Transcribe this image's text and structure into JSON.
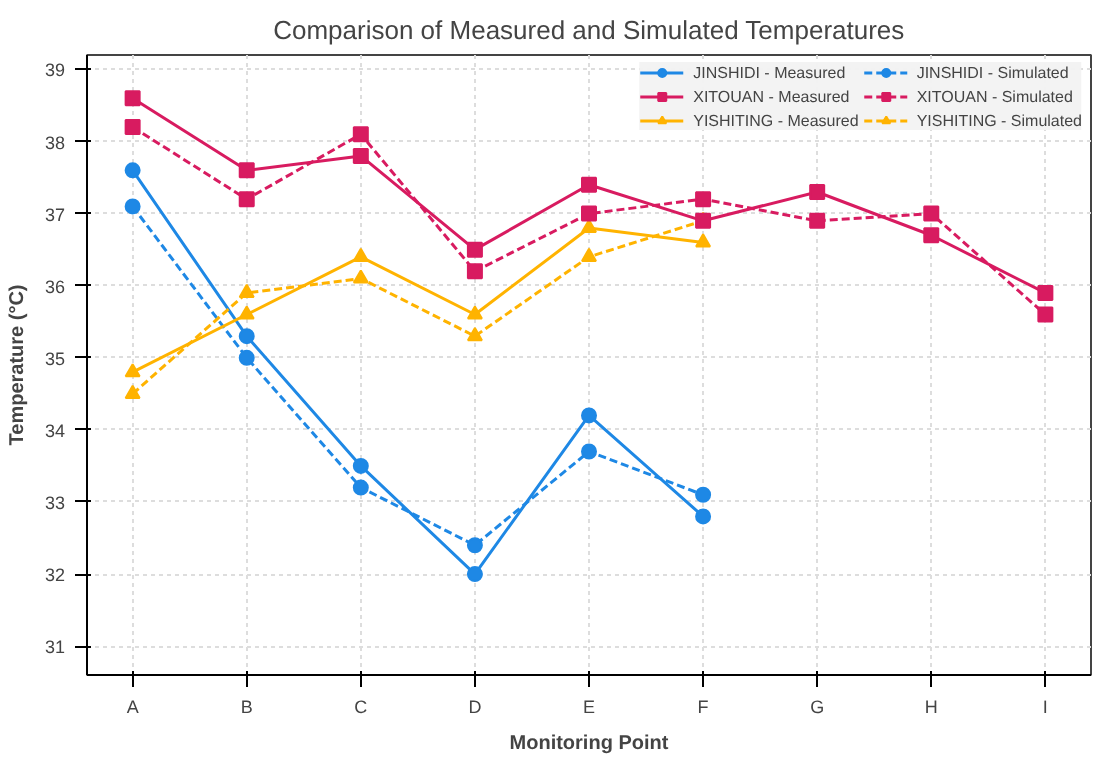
{
  "chart_data": {
    "type": "line",
    "title": "Comparison of Measured and Simulated Temperatures",
    "xlabel": "Monitoring Point",
    "ylabel": "Temperature (°C)",
    "categories": [
      "A",
      "B",
      "C",
      "D",
      "E",
      "F",
      "G",
      "H",
      "I"
    ],
    "ylim": [
      30.6,
      39.2
    ],
    "yticks": [
      31,
      32,
      33,
      34,
      35,
      36,
      37,
      38,
      39
    ],
    "grid": true,
    "legend": "top right",
    "series": [
      {
        "name": "JINSHIDI - Measured",
        "color": "#1e88e5",
        "marker": "circle",
        "line_style": "solid",
        "values": [
          37.6,
          35.3,
          33.5,
          32.0,
          34.2,
          32.8,
          null,
          null,
          null
        ]
      },
      {
        "name": "JINSHIDI - Simulated",
        "color": "#1e88e5",
        "marker": "circle",
        "line_style": "dashed",
        "values": [
          37.1,
          35.0,
          33.2,
          32.4,
          33.7,
          33.1,
          null,
          null,
          null
        ]
      },
      {
        "name": "XITOUAN - Measured",
        "color": "#d81b60",
        "marker": "square",
        "line_style": "solid",
        "values": [
          38.6,
          37.6,
          37.8,
          36.5,
          37.4,
          36.9,
          37.3,
          36.7,
          35.9
        ]
      },
      {
        "name": "XITOUAN - Simulated",
        "color": "#d81b60",
        "marker": "square",
        "line_style": "dashed",
        "values": [
          38.2,
          37.2,
          38.1,
          36.2,
          37.0,
          37.2,
          36.9,
          37.0,
          35.6
        ]
      },
      {
        "name": "YISHITING - Measured",
        "color": "#ffb300",
        "marker": "triangle",
        "line_style": "solid",
        "values": [
          34.8,
          35.6,
          36.4,
          35.6,
          36.8,
          36.6,
          null,
          null,
          null
        ]
      },
      {
        "name": "YISHITING - Simulated",
        "color": "#ffb300",
        "marker": "triangle",
        "line_style": "dashed",
        "values": [
          34.5,
          35.9,
          36.1,
          35.3,
          36.4,
          36.9,
          null,
          null,
          null
        ]
      }
    ]
  }
}
